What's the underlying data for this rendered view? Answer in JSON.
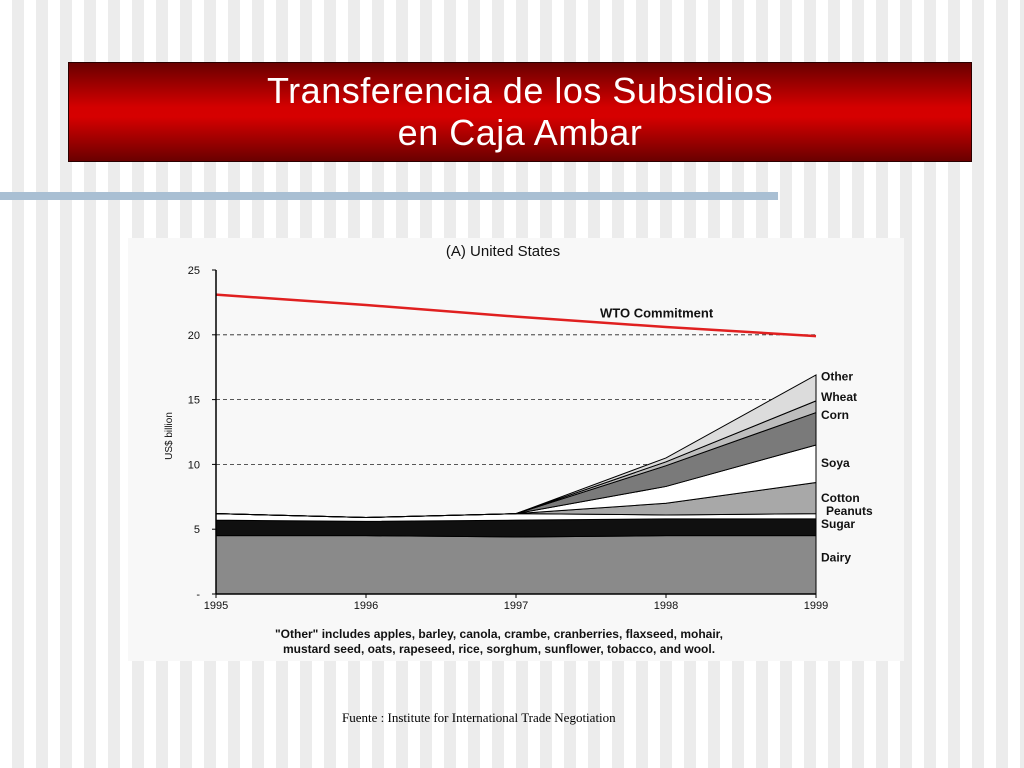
{
  "slide": {
    "title_line1": "Transferencia de los Subsidios",
    "title_line2": "en Caja Ambar",
    "source": "Fuente : Institute for International Trade Negotiation"
  },
  "colors": {
    "title_bg": "#cc0000",
    "wto_line": "#e02020",
    "rule": "#a9bfd3"
  },
  "chart_data": {
    "type": "area",
    "title": "(A) United States",
    "ylabel": "US$ billion",
    "xlabel": "",
    "x": [
      1995,
      1996,
      1997,
      1998,
      1999
    ],
    "xticks": [
      "1995",
      "1996",
      "1997",
      "1998",
      "1999"
    ],
    "yticks": [
      "-",
      "5",
      "10",
      "15",
      "20",
      "25"
    ],
    "ylim": [
      0,
      25
    ],
    "grid": "dashed horizontal at 10, 15, 20",
    "stack_order": [
      "Dairy",
      "Sugar",
      "Peanuts",
      "Cotton",
      "Soya",
      "Corn",
      "Wheat",
      "Other"
    ],
    "series": [
      {
        "name": "Dairy",
        "values": [
          4.5,
          4.5,
          4.4,
          4.5,
          4.5
        ],
        "color": "#8a8a8a"
      },
      {
        "name": "Sugar",
        "values": [
          1.2,
          1.1,
          1.3,
          1.3,
          1.3
        ],
        "color": "#101010"
      },
      {
        "name": "Peanuts",
        "values": [
          0.5,
          0.3,
          0.5,
          0.3,
          0.4
        ],
        "color": "#ffffff"
      },
      {
        "name": "Cotton",
        "values": [
          0.0,
          0.0,
          0.0,
          0.9,
          2.4
        ],
        "color": "#a8a8a8"
      },
      {
        "name": "Soya",
        "values": [
          0.0,
          0.0,
          0.0,
          1.3,
          2.9
        ],
        "color": "#ffffff"
      },
      {
        "name": "Corn",
        "values": [
          0.0,
          0.0,
          0.0,
          1.6,
          2.5
        ],
        "color": "#7a7a7a"
      },
      {
        "name": "Wheat",
        "values": [
          0.0,
          0.0,
          0.0,
          0.3,
          0.9
        ],
        "color": "#bdbdbd"
      },
      {
        "name": "Other",
        "values": [
          0.0,
          0.0,
          0.0,
          0.3,
          2.0
        ],
        "color": "#dcdcdc"
      }
    ],
    "commitment": {
      "name": "WTO Commitment",
      "values": [
        23.1,
        22.3,
        21.4,
        20.6,
        19.9
      ]
    },
    "footnote_line1": "\"Other\" includes apples, barley, canola, crambe, cranberries, flaxseed, mohair,",
    "footnote_line2": "mustard seed, oats, rapeseed, rice, sorghum, sunflower, tobacco, and wool."
  }
}
